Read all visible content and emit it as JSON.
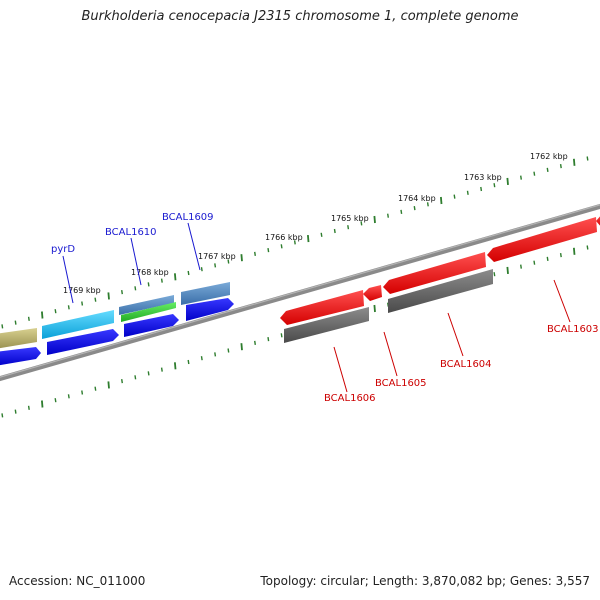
{
  "title": "Burkholderia cenocepacia J2315 chromosome 1, complete genome",
  "footer": {
    "accession": "Accession: NC_011000",
    "summary": "Topology: circular; Length: 3,870,082 bp; Genes: 3,557"
  },
  "colors": {
    "backbone": "#8a8a8a",
    "ticks": "#2e7d2e",
    "forward_gene": "#ee1111",
    "forward_label": "#cc0000",
    "reverse_gene": "#1a1ae8",
    "reverse_label": "#1a1ad0",
    "cds_gray": "#666666",
    "cds_cyan": "#22b8e6",
    "cds_steel": "#4a86c0",
    "cds_green": "#33cc33",
    "cds_olive": "#b8b060"
  },
  "kbp_markers": [
    "1769 kbp",
    "1768 kbp",
    "1767 kbp",
    "1766 kbp",
    "1765 kbp",
    "1764 kbp",
    "1763 kbp",
    "1762 kbp"
  ],
  "gene_labels": [
    {
      "name": "pyrD",
      "strand": "reverse"
    },
    {
      "name": "BCAL1610",
      "strand": "reverse"
    },
    {
      "name": "BCAL1609",
      "strand": "reverse"
    },
    {
      "name": "BCAL1606",
      "strand": "forward"
    },
    {
      "name": "BCAL1605",
      "strand": "forward"
    },
    {
      "name": "BCAL1604",
      "strand": "forward"
    },
    {
      "name": "BCAL1603",
      "strand": "forward"
    }
  ]
}
